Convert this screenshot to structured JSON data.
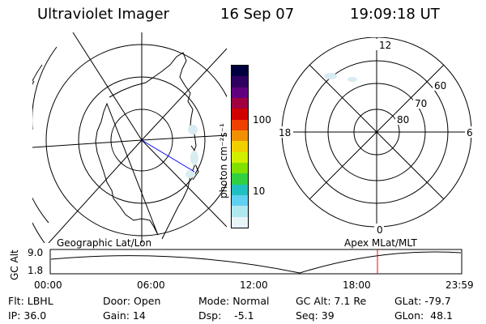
{
  "header": {
    "instrument": "Ultraviolet Imager",
    "date": "16 Sep 07",
    "time": "19:09:18 UT"
  },
  "colorbar": {
    "label": "photon cm⁻²s⁻¹",
    "ticks": [
      "100",
      "10"
    ],
    "colors": [
      "#000040",
      "#300060",
      "#600080",
      "#a00040",
      "#d00000",
      "#f04000",
      "#f09000",
      "#f0d000",
      "#d0f000",
      "#80e000",
      "#30d040",
      "#20c0c0",
      "#60d0f0",
      "#b0e8f0",
      "#e8f4f8"
    ]
  },
  "left_map": {
    "label": "Geographic Lat/Lon"
  },
  "right_map": {
    "label": "Apex  MLat/MLT",
    "hour_labels": [
      "12",
      "18",
      "6",
      "0"
    ],
    "lat_labels": [
      "60",
      "70",
      "80"
    ]
  },
  "timeline": {
    "axis_label": "GC Alt",
    "y_ticks": [
      "9.0",
      "1.8"
    ],
    "x_ticks": [
      "00:00",
      "06:00",
      "12:00",
      "18:00",
      "23:59"
    ],
    "current_marker_color": "#ff0000"
  },
  "info": {
    "row1": [
      "Flt: LBHL",
      "Door: Open",
      "Mode: Normal",
      "GC Alt: 7.1 Re",
      "GLat: -79.7"
    ],
    "row2": [
      "IP: 36.0",
      "Gain: 14",
      "Dsp:    -5.1",
      "Seq: 39",
      "GLon:  48.1"
    ]
  }
}
